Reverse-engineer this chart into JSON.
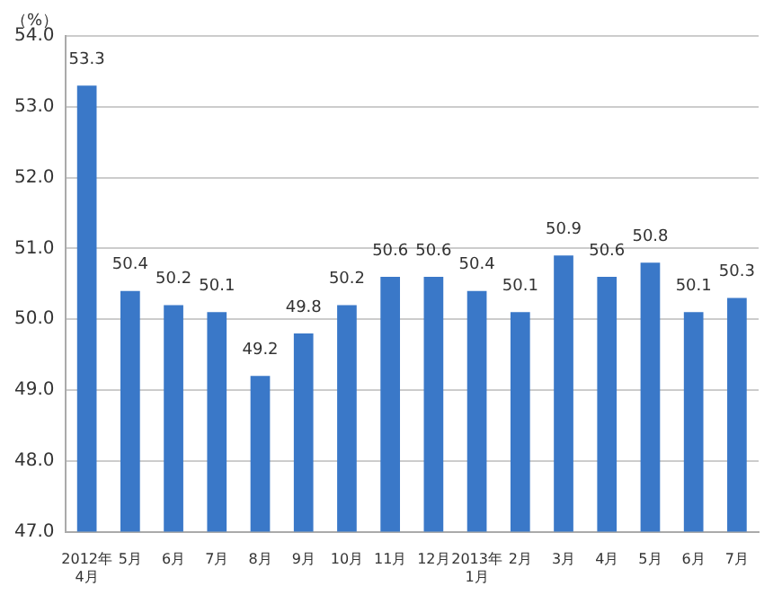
{
  "chart_data": {
    "type": "bar",
    "ylabel": "（%）",
    "categories": [
      "2012年\n4月",
      "5月",
      "6月",
      "7月",
      "8月",
      "9月",
      "10月",
      "11月",
      "12月",
      "2013年\n1月",
      "2月",
      "3月",
      "4月",
      "5月",
      "6月",
      "7月"
    ],
    "values": [
      53.3,
      50.4,
      50.2,
      50.1,
      49.2,
      49.8,
      50.2,
      50.6,
      50.6,
      50.4,
      50.1,
      50.9,
      50.6,
      50.8,
      50.1,
      50.3
    ],
    "color": "#3a78c8",
    "ylim": [
      47,
      54
    ],
    "yticks": [
      {
        "value": 47,
        "label": "47.0"
      },
      {
        "value": 48,
        "label": "48.0"
      },
      {
        "value": 49,
        "label": "49.0"
      },
      {
        "value": 50,
        "label": "50.0"
      },
      {
        "value": 51,
        "label": "51.0"
      },
      {
        "value": 52,
        "label": "52.0"
      },
      {
        "value": 53,
        "label": "53.0"
      },
      {
        "value": 54,
        "label": "54.0"
      }
    ],
    "grid": "y",
    "data_labels": true
  }
}
